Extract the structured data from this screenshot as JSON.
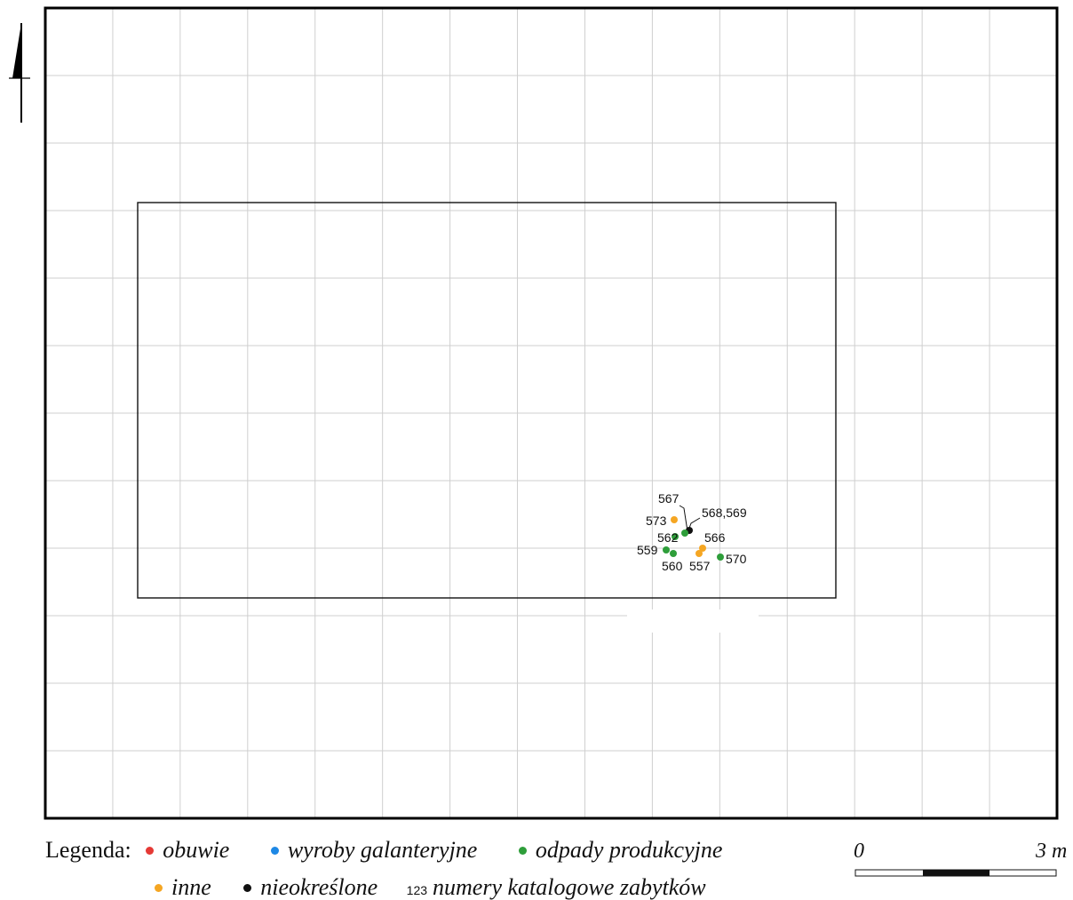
{
  "map": {
    "grid_cols": 15,
    "grid_rows": 12,
    "colors": {
      "obuwie": "#e53935",
      "wyroby_galanteryjne": "#1e88e5",
      "odpady_produkcyjne": "#2e9e3a",
      "inne": "#f5a623",
      "nieokreslone": "#111111",
      "grid": "#cfcfcf",
      "frame": "#000000"
    },
    "points": [
      {
        "id": "567",
        "category": "nieokreslone"
      },
      {
        "id": "573",
        "category": "inne"
      },
      {
        "id": "568,569",
        "category": "odpady_produkcyjne"
      },
      {
        "id": "562",
        "category": "odpady_produkcyjne"
      },
      {
        "id": "566",
        "category": "inne"
      },
      {
        "id": "559",
        "category": "odpady_produkcyjne"
      },
      {
        "id": "560",
        "category": "odpady_produkcyjne"
      },
      {
        "id": "557",
        "category": "inne"
      },
      {
        "id": "570",
        "category": "odpady_produkcyjne"
      }
    ]
  },
  "legend": {
    "title": "Legenda:",
    "items": [
      {
        "label": "obuwie",
        "color": "#e53935"
      },
      {
        "label": "wyroby galanteryjne",
        "color": "#1e88e5"
      },
      {
        "label": "odpady produkcyjne",
        "color": "#2e9e3a"
      },
      {
        "label": "inne",
        "color": "#f5a623"
      },
      {
        "label": "nieokreślone",
        "color": "#111111"
      }
    ],
    "number_sample": "123",
    "number_label": "numery katalogowe zabytków"
  },
  "scale": {
    "start_label": "0",
    "end_label": "3 m"
  }
}
